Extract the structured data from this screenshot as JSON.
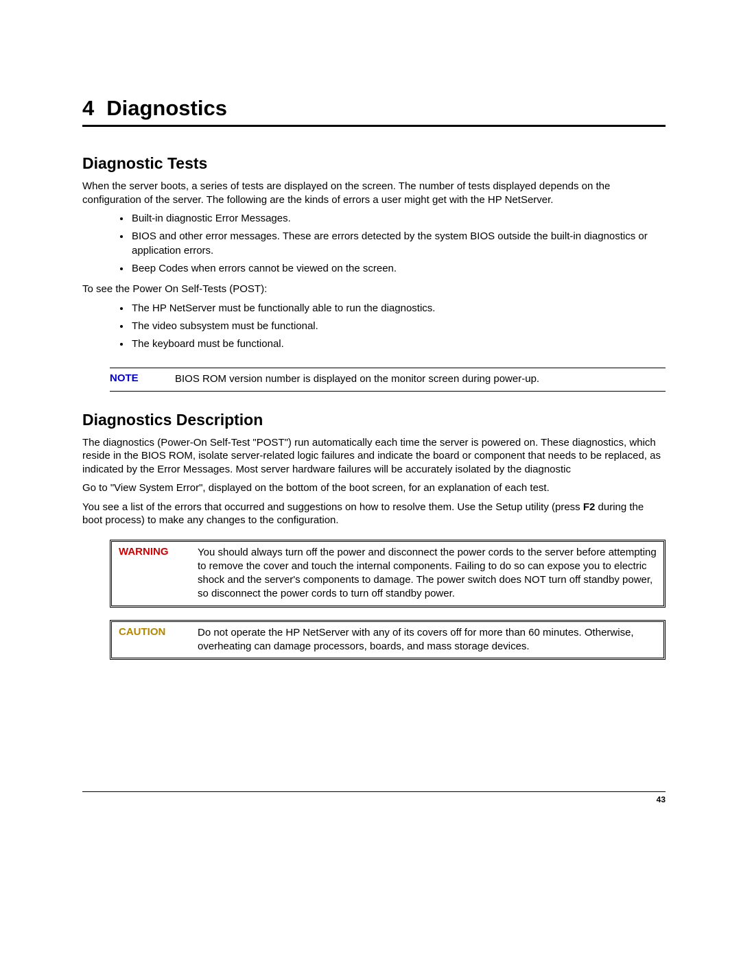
{
  "chapter": {
    "number": "4",
    "title": "Diagnostics"
  },
  "sections": {
    "diag_tests": {
      "title": "Diagnostic Tests",
      "intro": "When the server boots, a series of tests are displayed on the screen. The number of tests displayed depends on the configuration of the server. The following are the kinds of errors a user might get with the HP NetServer.",
      "bullets1": [
        "Built-in diagnostic Error Messages.",
        "BIOS and other error messages. These are errors detected by the system BIOS outside the built-in diagnostics or application errors.",
        "Beep Codes when errors cannot be viewed on the screen."
      ],
      "post_intro": "To see the Power On Self-Tests (POST):",
      "bullets2": [
        "The HP NetServer must be functionally able to run the diagnostics.",
        "The video subsystem must be functional.",
        "The keyboard must be functional."
      ]
    },
    "note": {
      "label": "NOTE",
      "text": "BIOS ROM version number is displayed on the monitor screen during power-up."
    },
    "diag_desc": {
      "title": "Diagnostics Description",
      "p1": "The diagnostics (Power-On Self-Test \"POST\") run automatically each time the server is powered on. These diagnostics, which reside in the BIOS ROM, isolate server-related logic failures and indicate the board or component that needs to be replaced, as indicated by the Error Messages. Most server hardware failures will be accurately isolated by the diagnostic",
      "p2": "Go to \"View System Error\", displayed on the bottom of the boot screen, for an explanation of each test.",
      "p3_pre": "You see a list of the errors that occurred and suggestions on how to resolve them. Use the Setup utility (press ",
      "p3_bold": "F2",
      "p3_post": " during the boot process) to make any changes to the configuration."
    },
    "warning": {
      "label": "WARNING",
      "text": "You should always turn off the power and disconnect the power cords to the server before attempting to remove the cover and touch the internal components. Failing to do so can expose you to electric shock and the server's components to damage. The power switch does NOT turn off standby power, so disconnect the power cords to turn off standby power."
    },
    "caution": {
      "label": "CAUTION",
      "text": "Do not operate the HP NetServer with any of its covers off for more than 60 minutes. Otherwise, overheating can damage processors, boards, and mass storage devices."
    }
  },
  "page_number": "43",
  "colors": {
    "note_label": "#0000cc",
    "warning_label": "#cc0000",
    "caution_label": "#b38600",
    "text": "#000000",
    "background": "#ffffff"
  },
  "typography": {
    "chapter_title_pt": 31,
    "section_title_pt": 23,
    "body_pt": 15,
    "footer_pt": 12,
    "font_family": "Arial"
  }
}
